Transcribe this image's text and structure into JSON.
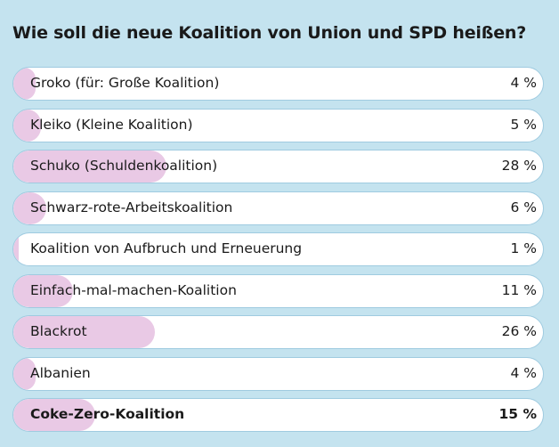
{
  "poll": {
    "question": "Wie soll die neue Koalition von Union und SPD heißen?",
    "options": [
      {
        "label": "Groko (für: Große Koalition)",
        "percent_text": "4 %",
        "value": 4,
        "selected": false
      },
      {
        "label": "Kleiko (Kleine Koalition)",
        "percent_text": "5 %",
        "value": 5,
        "selected": false
      },
      {
        "label": "Schuko (Schuldenkoalition)",
        "percent_text": "28 %",
        "value": 28,
        "selected": false
      },
      {
        "label": "Schwarz-rote-Arbeitskoalition",
        "percent_text": "6 %",
        "value": 6,
        "selected": false
      },
      {
        "label": "Koalition von Aufbruch und Erneuerung",
        "percent_text": "1 %",
        "value": 1,
        "selected": false
      },
      {
        "label": "Einfach-mal-machen-Koalition",
        "percent_text": "11 %",
        "value": 11,
        "selected": false
      },
      {
        "label": "Blackrot",
        "percent_text": "26 %",
        "value": 26,
        "selected": false
      },
      {
        "label": "Albanien",
        "percent_text": "4 %",
        "value": 4,
        "selected": false
      },
      {
        "label": "Coke-Zero-Koalition",
        "percent_text": "15 %",
        "value": 15,
        "selected": true
      }
    ]
  },
  "colors": {
    "background": "#c4e3ef",
    "bar_fill": "#e9c9e5",
    "option_border": "#9fcbe0",
    "option_background": "#ffffff",
    "text": "#1a1a1a"
  }
}
